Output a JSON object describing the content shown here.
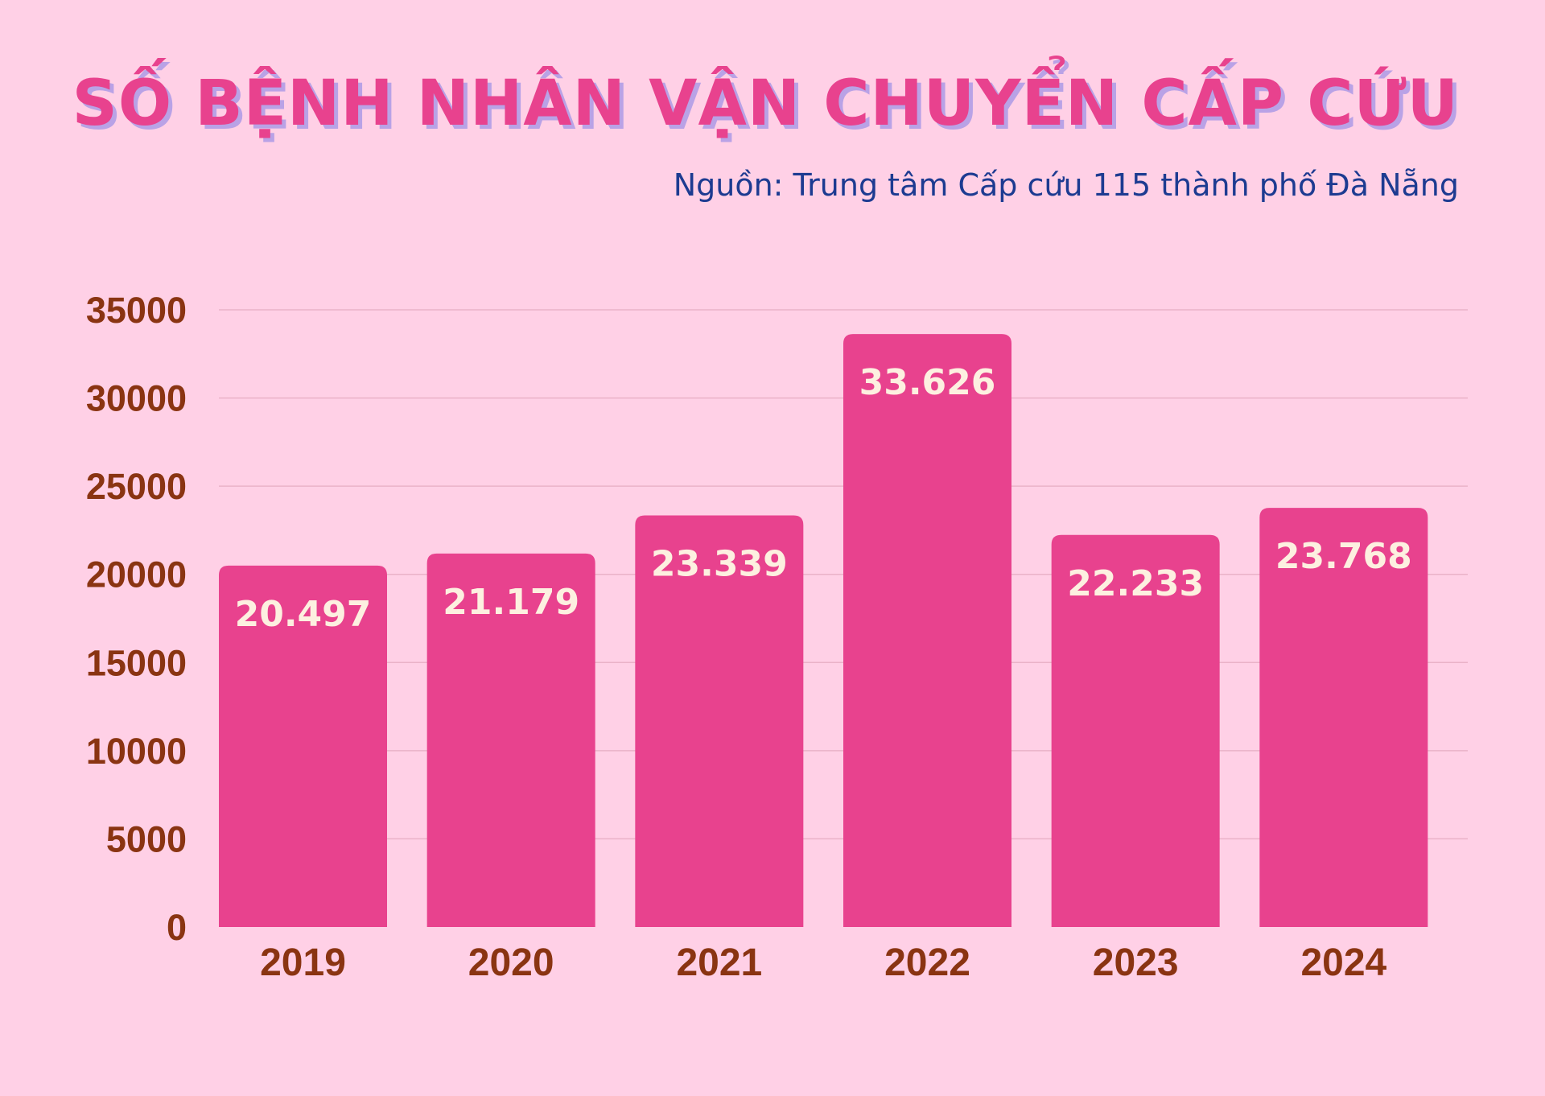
{
  "chart_data": {
    "type": "bar",
    "title": "SỐ BỆNH NHÂN VẬN CHUYỂN CẤP CỨU",
    "subtitle": "Nguồn: Trung tâm Cấp cứu 115 thành phố Đà Nẵng",
    "categories": [
      "2019",
      "2020",
      "2021",
      "2022",
      "2023",
      "2024"
    ],
    "values": [
      20497,
      21179,
      23339,
      33626,
      22233,
      23768
    ],
    "data_labels": [
      "20.497",
      "21.179",
      "23.339",
      "33.626",
      "22.233",
      "23.768"
    ],
    "ylim": [
      0,
      35000
    ],
    "yticks": [
      "0",
      "5000",
      "10000",
      "15000",
      "20000",
      "25000",
      "30000",
      "35000"
    ],
    "grid": true,
    "legend": "none",
    "colors": {
      "background": "#ffd0e6",
      "bar": "#e8428e",
      "title": "#e8428e",
      "title_shadow": "#b9a2e6",
      "subtitle": "#1d3b91",
      "axis_text": "#8a3412",
      "data_label": "#fdf0e0"
    }
  }
}
